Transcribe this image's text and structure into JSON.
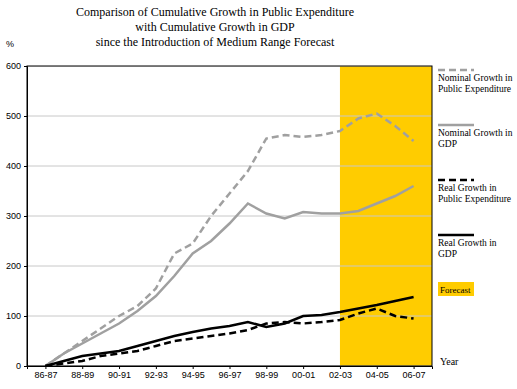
{
  "chart_data": {
    "type": "line",
    "title": [
      "Comparison of Cumulative Growth in Public Expenditure",
      "with Cumulative Growth in GDP",
      "since the Introduction of Medium Range Forecast"
    ],
    "x_label": "Year",
    "y_label": "%",
    "categories": [
      "86-87",
      null,
      "88-89",
      null,
      "90-91",
      null,
      "92-93",
      null,
      "94-95",
      null,
      "96-97",
      null,
      "98-99",
      null,
      "00-01",
      null,
      "02-03",
      null,
      "04-05",
      null,
      "06-07"
    ],
    "series": [
      {
        "name": "Nominal Growth in Public Expenditure",
        "color": "#a0a0a0",
        "line_style": "dashed",
        "values": [
          0,
          25,
          50,
          75,
          100,
          120,
          155,
          225,
          245,
          300,
          345,
          390,
          455,
          462,
          458,
          462,
          470,
          495,
          505,
          480,
          450
        ]
      },
      {
        "name": "Nominal Growth in GDP",
        "color": "#a0a0a0",
        "line_style": "solid",
        "values": [
          0,
          25,
          45,
          65,
          85,
          110,
          140,
          180,
          225,
          250,
          285,
          325,
          305,
          295,
          308,
          305,
          305,
          310,
          325,
          340,
          360
        ]
      },
      {
        "name": "Real Growth in Public Expenditure",
        "color": "#000000",
        "line_style": "dashed",
        "values": [
          0,
          5,
          10,
          20,
          25,
          30,
          40,
          50,
          55,
          60,
          65,
          72,
          85,
          88,
          85,
          88,
          92,
          105,
          115,
          100,
          95
        ]
      },
      {
        "name": "Real Growth in GDP",
        "color": "#000000",
        "line_style": "solid",
        "values": [
          0,
          10,
          20,
          25,
          30,
          40,
          50,
          60,
          68,
          75,
          80,
          88,
          78,
          85,
          100,
          102,
          108,
          115,
          122,
          130,
          138
        ]
      }
    ],
    "regions": [
      {
        "label": "Forecast",
        "start": "02-03",
        "color": "#ffcc00"
      }
    ],
    "ylim": [
      0,
      600
    ],
    "yticks": [
      0,
      100,
      200,
      300,
      400,
      500,
      600
    ],
    "grid": true,
    "legend": "right"
  }
}
